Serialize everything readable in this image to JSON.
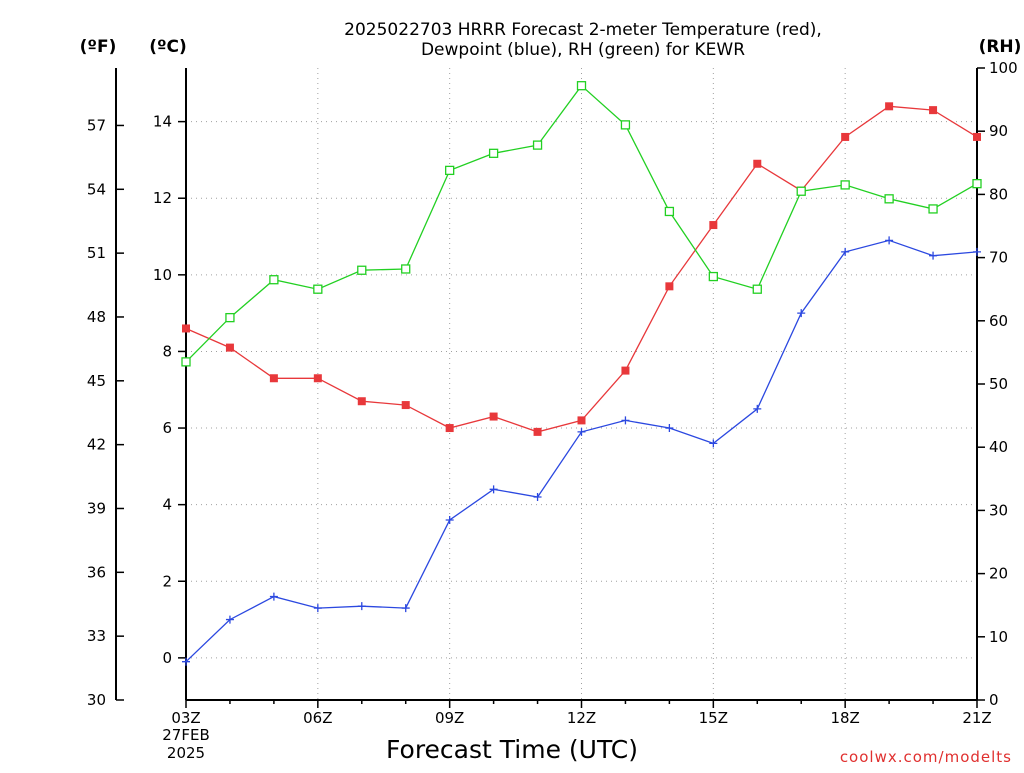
{
  "title_line1": "2025022703 HRRR Forecast 2-meter Temperature (red),",
  "title_line2": "Dewpoint (blue), RH (green) for KEWR",
  "unit_f": "(ºF)",
  "unit_c": "(ºC)",
  "unit_rh": "(RH)",
  "xlabel": "Forecast Time (UTC)",
  "date_line1": "27FEB",
  "date_line2": "2025",
  "credit": "coolwx.com/modelts",
  "colors": {
    "temperature": "#e8383b",
    "dewpoint": "#2b48e0",
    "rh": "#22d022",
    "grid": "#a0a0a0",
    "axis": "#000000"
  },
  "chart_data": {
    "type": "line",
    "x": [
      "03Z",
      "04Z",
      "05Z",
      "06Z",
      "07Z",
      "08Z",
      "09Z",
      "10Z",
      "11Z",
      "12Z",
      "13Z",
      "14Z",
      "15Z",
      "16Z",
      "17Z",
      "18Z",
      "19Z",
      "20Z",
      "21Z"
    ],
    "x_tick_labels": [
      "03Z",
      "06Z",
      "09Z",
      "12Z",
      "15Z",
      "18Z",
      "21Z"
    ],
    "axes": {
      "celsius": {
        "range": [
          -1.1,
          15.4
        ],
        "ticks": [
          0,
          2,
          4,
          6,
          8,
          10,
          12,
          14
        ]
      },
      "fahrenheit": {
        "range": [
          30,
          59.7
        ],
        "ticks": [
          30,
          33,
          36,
          39,
          42,
          45,
          48,
          51,
          54,
          57
        ]
      },
      "rh": {
        "range": [
          0,
          100
        ],
        "ticks": [
          0,
          10,
          20,
          30,
          40,
          50,
          60,
          70,
          80,
          90,
          100
        ]
      }
    },
    "grid": true,
    "series": [
      {
        "name": "Temperature",
        "axis": "celsius",
        "marker": "filled-square",
        "values": [
          8.6,
          8.1,
          7.3,
          7.3,
          6.7,
          6.6,
          6.0,
          6.3,
          5.9,
          6.2,
          7.5,
          9.7,
          11.3,
          12.9,
          12.2,
          13.6,
          14.4,
          14.3,
          13.6
        ]
      },
      {
        "name": "Dewpoint",
        "axis": "celsius",
        "marker": "plus",
        "values": [
          -0.1,
          1.0,
          1.6,
          1.3,
          1.35,
          1.3,
          3.6,
          4.4,
          4.2,
          5.9,
          6.2,
          6.0,
          5.6,
          6.5,
          9.0,
          10.6,
          10.9,
          10.5,
          10.6
        ]
      },
      {
        "name": "RH",
        "axis": "rh",
        "marker": "open-square",
        "values": [
          53.5,
          60.5,
          66.5,
          65,
          68,
          68.2,
          83.8,
          86.5,
          87.8,
          97.2,
          91,
          77.3,
          67,
          65,
          80.5,
          81.5,
          79.3,
          77.7,
          81.7
        ]
      }
    ]
  }
}
